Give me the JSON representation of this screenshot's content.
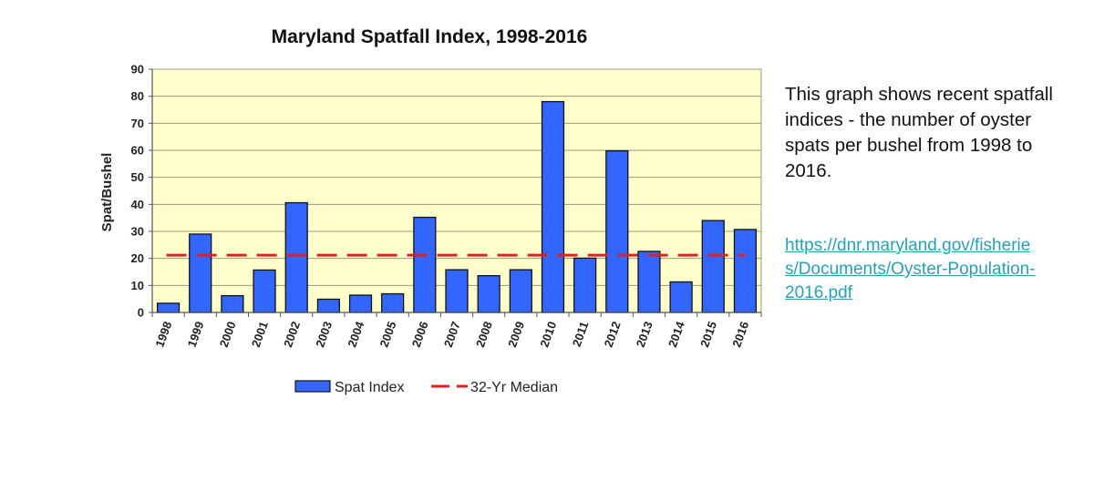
{
  "chart_data": {
    "type": "bar",
    "title": "Maryland Spatfall Index, 1998-2016",
    "xlabel": "",
    "ylabel": "Spat/Bushel",
    "ylim": [
      0,
      90
    ],
    "yticks": [
      0,
      10,
      20,
      30,
      40,
      50,
      60,
      70,
      80,
      90
    ],
    "grid": true,
    "categories": [
      "1998",
      "1999",
      "2000",
      "2001",
      "2002",
      "2003",
      "2004",
      "2005",
      "2006",
      "2007",
      "2008",
      "2009",
      "2010",
      "2011",
      "2012",
      "2013",
      "2014",
      "2015",
      "2016"
    ],
    "series": [
      {
        "name": "Spat Index",
        "type": "bar",
        "color": "#3366ff",
        "values": [
          3.4,
          29.0,
          6.2,
          15.7,
          40.6,
          4.9,
          6.4,
          6.9,
          35.2,
          15.8,
          13.6,
          15.8,
          78.0,
          20.1,
          59.8,
          22.6,
          11.3,
          34.0,
          30.7
        ]
      },
      {
        "name": "32-Yr Median",
        "type": "line",
        "style": "dashed",
        "color": "#e02020",
        "value": 21.2
      }
    ],
    "legend_position": "bottom-center",
    "plot_background": "#ffffcc"
  },
  "side_panel": {
    "description": "This graph shows recent spatfall indices - the number of oyster spats per bushel from 1998 to 2016.",
    "link_text": "https://dnr.maryland.gov/fisheries/Documents/Oyster-Population-2016.pdf",
    "link_color": "#2aa0b4"
  }
}
